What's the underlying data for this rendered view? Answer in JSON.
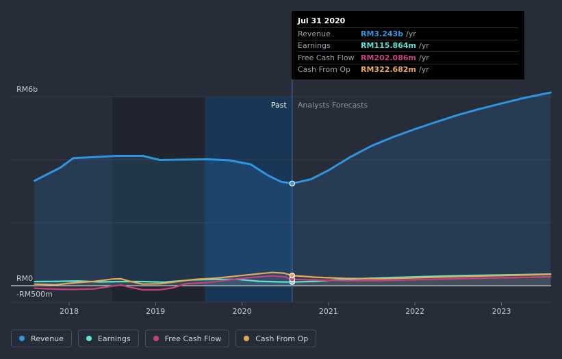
{
  "chart_data": {
    "type": "line",
    "y_unit": "RM billions",
    "ylim": [
      -0.5,
      6
    ],
    "y_tick_labels": [
      "RM6b",
      "RM0",
      "-RM500m"
    ],
    "x_ticks": [
      2018,
      2019,
      2020,
      2021,
      2022,
      2023
    ],
    "x_tick_labels": [
      "2018",
      "2019",
      "2020",
      "2021",
      "2022",
      "2023"
    ],
    "x_range": [
      2017.6,
      2023.57
    ],
    "past_start": 2019.57,
    "split_date": 2020.58,
    "past_label": "Past",
    "forecast_label": "Analysts Forecasts",
    "series": [
      {
        "name": "Revenue",
        "color": "#2f95e0",
        "points": [
          [
            2017.6,
            3.33
          ],
          [
            2017.9,
            3.75
          ],
          [
            2018.05,
            4.05
          ],
          [
            2018.3,
            4.08
          ],
          [
            2018.55,
            4.12
          ],
          [
            2018.85,
            4.12
          ],
          [
            2019.05,
            3.99
          ],
          [
            2019.3,
            4.0
          ],
          [
            2019.6,
            4.01
          ],
          [
            2019.85,
            3.98
          ],
          [
            2020.1,
            3.85
          ],
          [
            2020.3,
            3.5
          ],
          [
            2020.45,
            3.3
          ],
          [
            2020.58,
            3.243
          ],
          [
            2020.8,
            3.38
          ],
          [
            2021.0,
            3.66
          ],
          [
            2021.25,
            4.08
          ],
          [
            2021.5,
            4.44
          ],
          [
            2021.75,
            4.72
          ],
          [
            2022.0,
            4.97
          ],
          [
            2022.25,
            5.2
          ],
          [
            2022.5,
            5.42
          ],
          [
            2022.75,
            5.61
          ],
          [
            2023.0,
            5.78
          ],
          [
            2023.25,
            5.95
          ],
          [
            2023.57,
            6.13
          ]
        ]
      },
      {
        "name": "Earnings",
        "color": "#5ae3d2",
        "points": [
          [
            2017.6,
            0.13
          ],
          [
            2017.9,
            0.14
          ],
          [
            2018.1,
            0.15
          ],
          [
            2018.35,
            0.12
          ],
          [
            2018.6,
            0.13
          ],
          [
            2018.85,
            0.13
          ],
          [
            2019.1,
            0.11
          ],
          [
            2019.4,
            0.18
          ],
          [
            2019.7,
            0.2
          ],
          [
            2019.95,
            0.2
          ],
          [
            2020.2,
            0.14
          ],
          [
            2020.45,
            0.12
          ],
          [
            2020.58,
            0.116
          ],
          [
            2020.85,
            0.14
          ],
          [
            2021.1,
            0.19
          ],
          [
            2021.5,
            0.24
          ],
          [
            2022.0,
            0.28
          ],
          [
            2022.5,
            0.32
          ],
          [
            2023.0,
            0.34
          ],
          [
            2023.57,
            0.37
          ]
        ]
      },
      {
        "name": "Free Cash Flow",
        "color": "#c7417e",
        "points": [
          [
            2017.6,
            -0.08
          ],
          [
            2017.85,
            -0.11
          ],
          [
            2018.05,
            -0.12
          ],
          [
            2018.3,
            -0.1
          ],
          [
            2018.45,
            -0.03
          ],
          [
            2018.6,
            0.02
          ],
          [
            2018.7,
            -0.05
          ],
          [
            2018.85,
            -0.13
          ],
          [
            2019.05,
            -0.13
          ],
          [
            2019.2,
            -0.07
          ],
          [
            2019.35,
            0.06
          ],
          [
            2019.6,
            0.1
          ],
          [
            2019.85,
            0.18
          ],
          [
            2020.1,
            0.26
          ],
          [
            2020.35,
            0.31
          ],
          [
            2020.5,
            0.28
          ],
          [
            2020.58,
            0.202
          ],
          [
            2020.85,
            0.18
          ],
          [
            2021.2,
            0.16
          ],
          [
            2021.6,
            0.16
          ],
          [
            2022.0,
            0.19
          ],
          [
            2022.5,
            0.22
          ],
          [
            2023.0,
            0.25
          ],
          [
            2023.57,
            0.28
          ]
        ]
      },
      {
        "name": "Cash From Op",
        "color": "#e8a75a",
        "points": [
          [
            2017.6,
            0.05
          ],
          [
            2017.85,
            0.03
          ],
          [
            2018.05,
            0.09
          ],
          [
            2018.3,
            0.14
          ],
          [
            2018.5,
            0.21
          ],
          [
            2018.6,
            0.22
          ],
          [
            2018.7,
            0.14
          ],
          [
            2018.85,
            0.05
          ],
          [
            2019.05,
            0.06
          ],
          [
            2019.25,
            0.13
          ],
          [
            2019.45,
            0.2
          ],
          [
            2019.7,
            0.24
          ],
          [
            2019.95,
            0.31
          ],
          [
            2020.2,
            0.38
          ],
          [
            2020.35,
            0.42
          ],
          [
            2020.48,
            0.4
          ],
          [
            2020.58,
            0.323
          ],
          [
            2020.85,
            0.27
          ],
          [
            2021.2,
            0.23
          ],
          [
            2021.6,
            0.22
          ],
          [
            2022.0,
            0.25
          ],
          [
            2022.5,
            0.29
          ],
          [
            2023.0,
            0.32
          ],
          [
            2023.57,
            0.36
          ]
        ]
      }
    ]
  },
  "tooltip": {
    "date": "Jul 31 2020",
    "rows": [
      {
        "label": "Revenue",
        "value": "RM3.243b",
        "unit": "/yr",
        "color": "#2f95e0"
      },
      {
        "label": "Earnings",
        "value": "RM115.864m",
        "unit": "/yr",
        "color": "#5ae3d2"
      },
      {
        "label": "Free Cash Flow",
        "value": "RM202.086m",
        "unit": "/yr",
        "color": "#c7417e"
      },
      {
        "label": "Cash From Op",
        "value": "RM322.682m",
        "unit": "/yr",
        "color": "#e8a75a"
      }
    ]
  },
  "legend": [
    {
      "label": "Revenue",
      "color": "#2f95e0"
    },
    {
      "label": "Earnings",
      "color": "#5ae3d2"
    },
    {
      "label": "Free Cash Flow",
      "color": "#c7417e"
    },
    {
      "label": "Cash From Op",
      "color": "#e8a75a"
    }
  ]
}
